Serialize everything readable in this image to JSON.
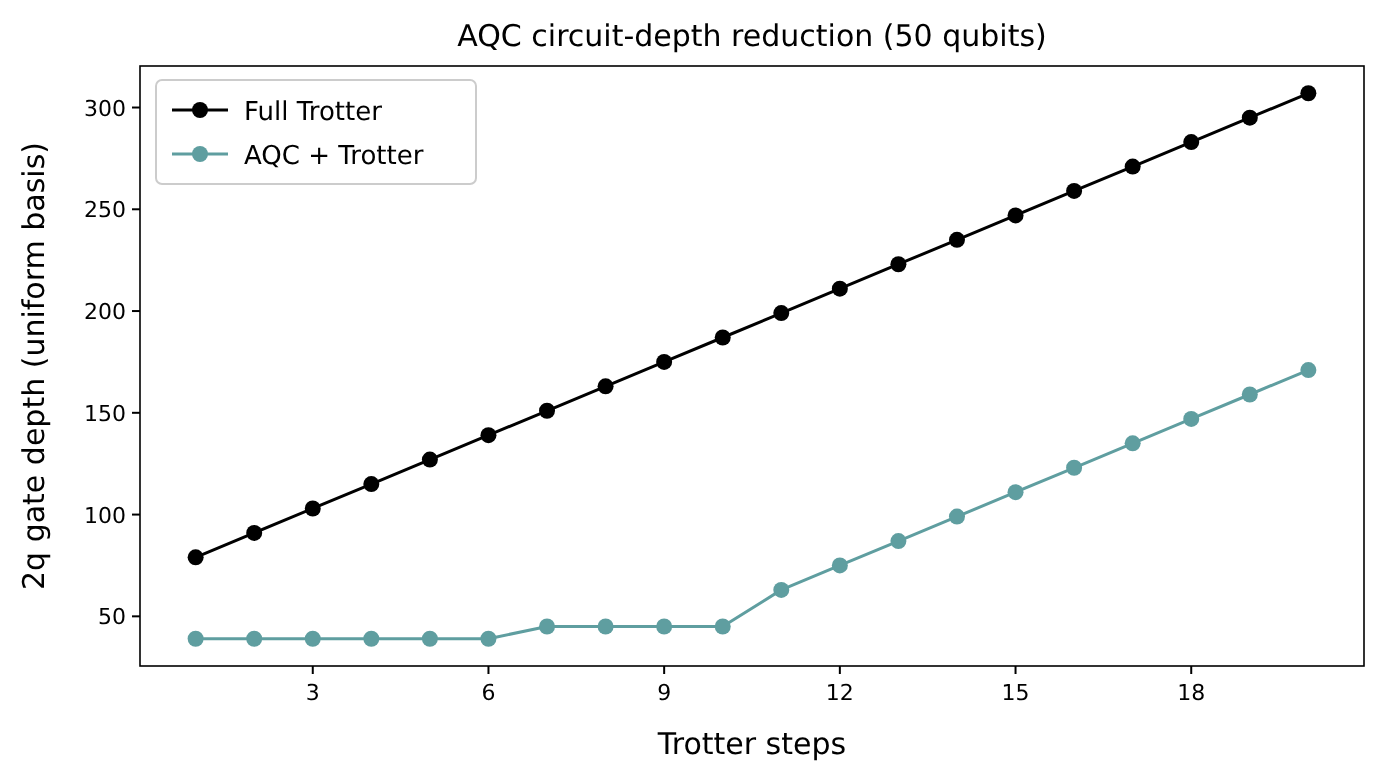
{
  "chart_data": {
    "type": "line",
    "title": "AQC circuit-depth reduction (50 qubits)",
    "xlabel": "Trotter steps",
    "ylabel": "2q gate depth (uniform basis)",
    "x": [
      1,
      2,
      3,
      4,
      5,
      6,
      7,
      8,
      9,
      10,
      11,
      12,
      13,
      14,
      15,
      16,
      17,
      18,
      19,
      20
    ],
    "series": [
      {
        "name": "Full Trotter",
        "color": "#000000",
        "values": [
          79,
          91,
          103,
          115,
          127,
          139,
          151,
          163,
          175,
          187,
          199,
          211,
          223,
          235,
          247,
          259,
          271,
          283,
          295,
          307
        ]
      },
      {
        "name": "AQC + Trotter",
        "color": "#5f9ea0",
        "values": [
          39,
          39,
          39,
          39,
          39,
          39,
          45,
          45,
          45,
          45,
          63,
          75,
          87,
          99,
          111,
          123,
          135,
          147,
          159,
          171
        ]
      }
    ],
    "xlim": [
      0.05,
      20.95
    ],
    "xticks": [
      3,
      6,
      9,
      12,
      15,
      18
    ],
    "ylim": [
      25.6,
      320.4
    ],
    "yticks": [
      50,
      100,
      150,
      200,
      250,
      300
    ],
    "grid": false,
    "legend": "top left",
    "marker": "circle",
    "line_style": "solid"
  }
}
